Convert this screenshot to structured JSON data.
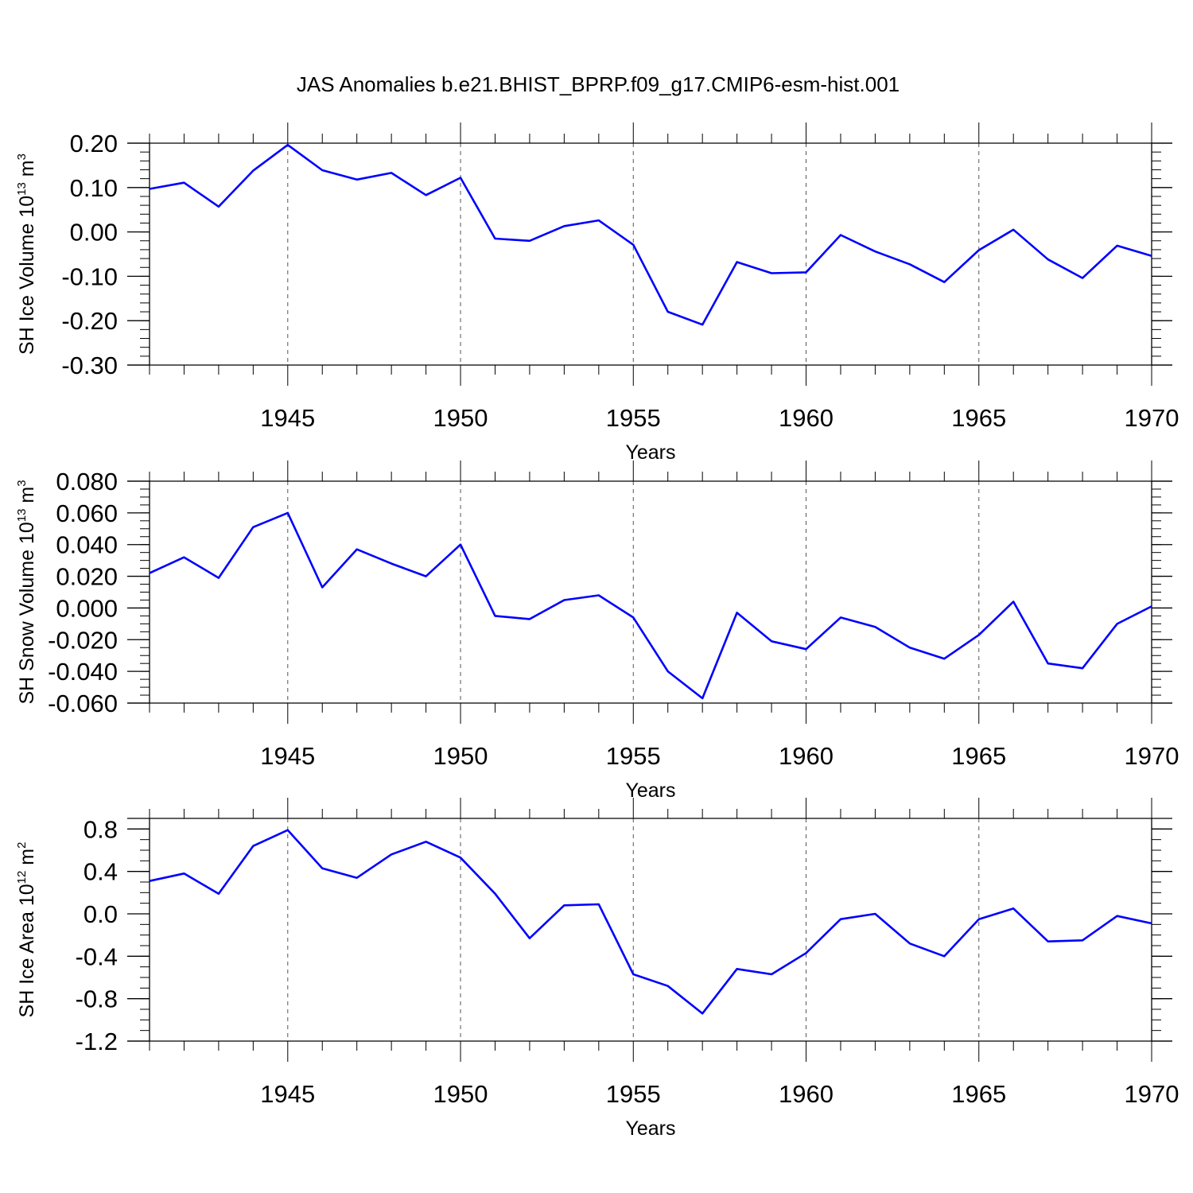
{
  "title": "JAS Anomalies b.e21.BHIST_BPRP.f09_g17.CMIP6-esm-hist.001",
  "line_color": "#0000ff",
  "chart_data": [
    {
      "type": "line",
      "ylabel_main": "SH Ice Volume 10",
      "ylabel_exp": "13",
      "ylabel_unit": " m",
      "ylabel_unit_exp": "3",
      "xlabel": "Years",
      "xlim": [
        1941,
        1970
      ],
      "ylim": [
        -0.3,
        0.2
      ],
      "ymajor": [
        -0.3,
        -0.2,
        -0.1,
        0.0,
        0.1,
        0.2
      ],
      "ymajor_labels": [
        "-0.30",
        "-0.20",
        "-0.10",
        "0.00",
        "0.10",
        "0.20"
      ],
      "yminor_step": 0.02,
      "xmajor": [
        1945,
        1950,
        1955,
        1960,
        1965,
        1970
      ],
      "xmajor_labels": [
        "1945",
        "1950",
        "1955",
        "1960",
        "1965",
        "1970"
      ],
      "x": [
        1941,
        1942,
        1943,
        1944,
        1945,
        1946,
        1947,
        1948,
        1949,
        1950,
        1951,
        1952,
        1953,
        1954,
        1955,
        1956,
        1957,
        1958,
        1959,
        1960,
        1961,
        1962,
        1963,
        1964,
        1965,
        1966,
        1967,
        1968,
        1969,
        1970
      ],
      "y": [
        0.097,
        0.111,
        0.057,
        0.138,
        0.196,
        0.139,
        0.118,
        0.133,
        0.083,
        0.122,
        -0.015,
        -0.02,
        0.013,
        0.026,
        -0.029,
        -0.18,
        -0.209,
        -0.068,
        -0.093,
        -0.091,
        -0.007,
        -0.044,
        -0.073,
        -0.113,
        -0.041,
        0.005,
        -0.062,
        -0.104,
        -0.031,
        -0.054
      ]
    },
    {
      "type": "line",
      "ylabel_main": "SH Snow Volume 10",
      "ylabel_exp": "13",
      "ylabel_unit": " m",
      "ylabel_unit_exp": "3",
      "xlabel": "Years",
      "xlim": [
        1941,
        1970
      ],
      "ylim": [
        -0.06,
        0.08
      ],
      "ymajor": [
        -0.06,
        -0.04,
        -0.02,
        0.0,
        0.02,
        0.04,
        0.06,
        0.08
      ],
      "ymajor_labels": [
        "-0.060",
        "-0.040",
        "-0.020",
        "0.000",
        "0.020",
        "0.040",
        "0.060",
        "0.080"
      ],
      "yminor_step": 0.005,
      "xmajor": [
        1945,
        1950,
        1955,
        1960,
        1965,
        1970
      ],
      "xmajor_labels": [
        "1945",
        "1950",
        "1955",
        "1960",
        "1965",
        "1970"
      ],
      "x": [
        1941,
        1942,
        1943,
        1944,
        1945,
        1946,
        1947,
        1948,
        1949,
        1950,
        1951,
        1952,
        1953,
        1954,
        1955,
        1956,
        1957,
        1958,
        1959,
        1960,
        1961,
        1962,
        1963,
        1964,
        1965,
        1966,
        1967,
        1968,
        1969,
        1970
      ],
      "y": [
        0.022,
        0.032,
        0.019,
        0.051,
        0.06,
        0.013,
        0.037,
        0.028,
        0.02,
        0.04,
        -0.005,
        -0.007,
        0.005,
        0.008,
        -0.006,
        -0.04,
        -0.057,
        -0.003,
        -0.021,
        -0.026,
        -0.006,
        -0.012,
        -0.025,
        -0.032,
        -0.017,
        0.004,
        -0.035,
        -0.038,
        -0.01,
        0.001
      ]
    },
    {
      "type": "line",
      "ylabel_main": "SH Ice Area 10",
      "ylabel_exp": "12",
      "ylabel_unit": " m",
      "ylabel_unit_exp": "2",
      "xlabel": "Years",
      "xlim": [
        1941,
        1970
      ],
      "ylim": [
        -1.2,
        0.9
      ],
      "ymajor": [
        -1.2,
        -0.8,
        -0.4,
        0.0,
        0.4,
        0.8
      ],
      "ymajor_labels": [
        "-1.2",
        "-0.8",
        "-0.4",
        "0.0",
        "0.4",
        "0.8"
      ],
      "yminor_step": 0.1,
      "xmajor": [
        1945,
        1950,
        1955,
        1960,
        1965,
        1970
      ],
      "xmajor_labels": [
        "1945",
        "1950",
        "1955",
        "1960",
        "1965",
        "1970"
      ],
      "x": [
        1941,
        1942,
        1943,
        1944,
        1945,
        1946,
        1947,
        1948,
        1949,
        1950,
        1951,
        1952,
        1953,
        1954,
        1955,
        1956,
        1957,
        1958,
        1959,
        1960,
        1961,
        1962,
        1963,
        1964,
        1965,
        1966,
        1967,
        1968,
        1969,
        1970
      ],
      "y": [
        0.31,
        0.38,
        0.19,
        0.64,
        0.79,
        0.43,
        0.34,
        0.56,
        0.68,
        0.53,
        0.19,
        -0.23,
        0.08,
        0.09,
        -0.57,
        -0.68,
        -0.94,
        -0.52,
        -0.57,
        -0.37,
        -0.05,
        0.0,
        -0.28,
        -0.4,
        -0.05,
        0.05,
        -0.26,
        -0.25,
        -0.02,
        -0.09
      ]
    }
  ]
}
